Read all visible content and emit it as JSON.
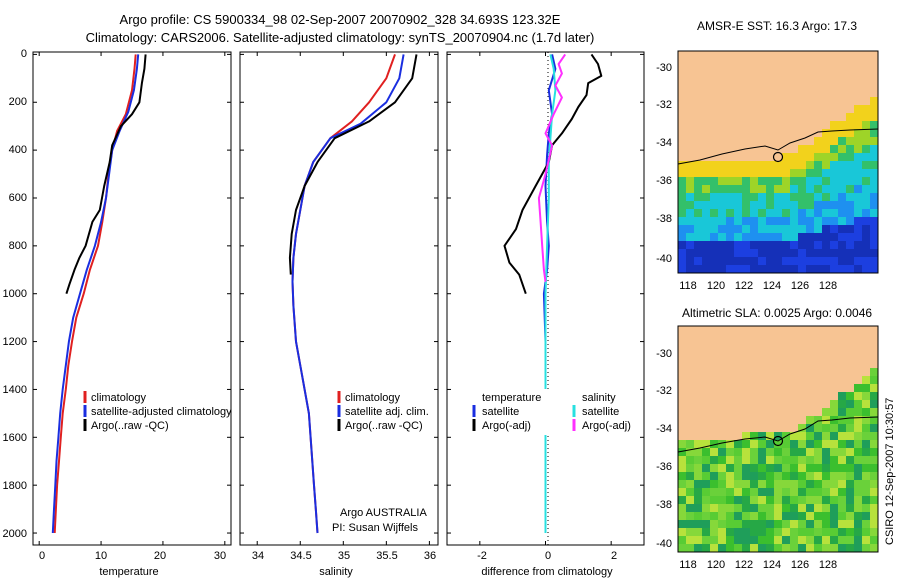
{
  "titles": {
    "line1": "Argo profile: CS 5900334_98 02-Sep-2007 20070902_328 34.693S 123.32E",
    "line2": "Climatology: CARS2006. Satellite-adjusted climatology: synTS_20070904.nc (1.7d later)",
    "sst_map": "AMSR-E SST: 16.3 Argo: 17.3",
    "sla_map": "Altimetric SLA: 0.0025 Argo: 0.0046",
    "side_stamp": "CSIRO 12-Sep-2007 10:30:57"
  },
  "colors": {
    "climatology": "#e02020",
    "satellite": "#1a2ee0",
    "argo": "#000000",
    "sat_salinity": "#28e0e0",
    "argo_salinity": "#ff30ff",
    "land": "#f7c493"
  },
  "chart_data": [
    {
      "type": "line",
      "name": "temperature-profile",
      "xlabel": "temperature",
      "ylabel": "",
      "xlim": [
        -1,
        31
      ],
      "ylim": [
        2050,
        -10
      ],
      "xticks": [
        0,
        10,
        20,
        30
      ],
      "yticks": [
        0,
        200,
        400,
        600,
        800,
        1000,
        1200,
        1400,
        1600,
        1800,
        2000
      ],
      "series": [
        {
          "name": "climatology",
          "color": "#e02020",
          "points": [
            [
              15.6,
              0
            ],
            [
              15.4,
              60
            ],
            [
              15.0,
              150
            ],
            [
              14.0,
              250
            ],
            [
              12.6,
              320
            ],
            [
              11.8,
              400
            ],
            [
              11.2,
              500
            ],
            [
              10.8,
              600
            ],
            [
              10.2,
              700
            ],
            [
              9.5,
              800
            ],
            [
              8.2,
              900
            ],
            [
              7.2,
              1000
            ],
            [
              6.0,
              1100
            ],
            [
              5.3,
              1200
            ],
            [
              4.7,
              1300
            ],
            [
              4.3,
              1400
            ],
            [
              3.8,
              1500
            ],
            [
              3.5,
              1600
            ],
            [
              3.2,
              1700
            ],
            [
              2.9,
              1800
            ],
            [
              2.7,
              1900
            ],
            [
              2.5,
              2000
            ]
          ]
        },
        {
          "name": "satellite-adjusted climatology",
          "color": "#1a2ee0",
          "points": [
            [
              16.0,
              0
            ],
            [
              15.8,
              60
            ],
            [
              15.3,
              150
            ],
            [
              14.4,
              240
            ],
            [
              13.0,
              320
            ],
            [
              11.8,
              400
            ],
            [
              11.3,
              500
            ],
            [
              10.8,
              600
            ],
            [
              10.0,
              700
            ],
            [
              9.0,
              800
            ],
            [
              7.7,
              900
            ],
            [
              6.6,
              1000
            ],
            [
              5.5,
              1100
            ],
            [
              4.8,
              1200
            ],
            [
              4.3,
              1300
            ],
            [
              3.8,
              1400
            ],
            [
              3.4,
              1500
            ],
            [
              3.1,
              1600
            ],
            [
              2.8,
              1700
            ],
            [
              2.6,
              1800
            ],
            [
              2.4,
              1900
            ],
            [
              2.2,
              2000
            ]
          ]
        },
        {
          "name": "Argo(..raw -QC)",
          "color": "#000000",
          "points": [
            [
              17.2,
              0
            ],
            [
              17.0,
              60
            ],
            [
              16.6,
              120
            ],
            [
              16.2,
              200
            ],
            [
              15.0,
              250
            ],
            [
              13.2,
              300
            ],
            [
              11.8,
              380
            ],
            [
              11.4,
              450
            ],
            [
              10.5,
              550
            ],
            [
              9.8,
              650
            ],
            [
              8.6,
              700
            ],
            [
              7.5,
              800
            ],
            [
              6.5,
              850
            ],
            [
              5.7,
              900
            ],
            [
              4.9,
              960
            ],
            [
              4.4,
              1000
            ]
          ]
        }
      ],
      "legend": [
        "climatology",
        "satellite-adjusted climatology",
        "Argo(..raw -QC)"
      ]
    },
    {
      "type": "line",
      "name": "salinity-profile",
      "xlabel": "salinity",
      "xlim": [
        33.8,
        36.1
      ],
      "ylim": [
        2050,
        -10
      ],
      "xticks": [
        34,
        34.5,
        35,
        35.5,
        36
      ],
      "series": [
        {
          "name": "climatology",
          "color": "#e02020",
          "points": [
            [
              35.6,
              0
            ],
            [
              35.5,
              100
            ],
            [
              35.3,
              200
            ],
            [
              35.1,
              280
            ],
            [
              34.85,
              350
            ],
            [
              34.65,
              450
            ],
            [
              34.55,
              550
            ],
            [
              34.5,
              650
            ],
            [
              34.45,
              750
            ],
            [
              34.42,
              850
            ],
            [
              34.41,
              950
            ],
            [
              34.42,
              1050
            ],
            [
              34.45,
              1200
            ],
            [
              34.5,
              1300
            ],
            [
              34.55,
              1400
            ],
            [
              34.6,
              1500
            ],
            [
              34.62,
              1600
            ],
            [
              34.64,
              1700
            ],
            [
              34.66,
              1800
            ],
            [
              34.68,
              1900
            ],
            [
              34.7,
              2000
            ]
          ]
        },
        {
          "name": "satellite adj. clim.",
          "color": "#1a2ee0",
          "points": [
            [
              35.7,
              0
            ],
            [
              35.65,
              100
            ],
            [
              35.5,
              200
            ],
            [
              35.2,
              290
            ],
            [
              34.85,
              350
            ],
            [
              34.65,
              450
            ],
            [
              34.55,
              550
            ],
            [
              34.5,
              650
            ],
            [
              34.45,
              750
            ],
            [
              34.42,
              850
            ],
            [
              34.41,
              950
            ],
            [
              34.42,
              1050
            ],
            [
              34.45,
              1200
            ],
            [
              34.5,
              1300
            ],
            [
              34.55,
              1400
            ],
            [
              34.6,
              1500
            ],
            [
              34.62,
              1600
            ],
            [
              34.64,
              1700
            ],
            [
              34.66,
              1800
            ],
            [
              34.68,
              1900
            ],
            [
              34.7,
              2000
            ]
          ]
        },
        {
          "name": "Argo(..raw -QC)",
          "color": "#000000",
          "points": [
            [
              35.85,
              0
            ],
            [
              35.8,
              100
            ],
            [
              35.6,
              200
            ],
            [
              35.3,
              280
            ],
            [
              34.9,
              350
            ],
            [
              34.7,
              450
            ],
            [
              34.55,
              550
            ],
            [
              34.45,
              650
            ],
            [
              34.4,
              750
            ],
            [
              34.38,
              850
            ],
            [
              34.39,
              920
            ]
          ]
        }
      ],
      "legend": [
        "climatology",
        "satellite adj. clim.",
        "Argo(..raw -QC)"
      ]
    },
    {
      "type": "line",
      "name": "difference-profile",
      "xlabel": "difference from climatology",
      "xlim": [
        -3.0,
        3.0
      ],
      "ylim": [
        2050,
        -10
      ],
      "xticks": [
        -2,
        0,
        2
      ],
      "series": [
        {
          "name": "temperature satellite",
          "color": "#1a2ee0",
          "points": [
            [
              0.2,
              0
            ],
            [
              0.3,
              60
            ],
            [
              0.1,
              150
            ],
            [
              0.2,
              250
            ],
            [
              0.1,
              330
            ],
            [
              0.05,
              420
            ],
            [
              0.0,
              550
            ],
            [
              0.05,
              700
            ],
            [
              0.1,
              800
            ],
            [
              0.05,
              900
            ],
            [
              -0.05,
              1000
            ],
            [
              0.0,
              1200
            ],
            [
              0.0,
              1400
            ],
            [
              0.0,
              1600
            ],
            [
              0.0,
              1800
            ],
            [
              0.0,
              2000
            ]
          ]
        },
        {
          "name": "temperature Argo(-adj)",
          "color": "#000000",
          "points": [
            [
              1.4,
              0
            ],
            [
              1.6,
              40
            ],
            [
              1.7,
              90
            ],
            [
              1.3,
              120
            ],
            [
              1.25,
              170
            ],
            [
              1.0,
              220
            ],
            [
              0.8,
              270
            ],
            [
              0.5,
              330
            ],
            [
              0.2,
              380
            ],
            [
              0.1,
              450
            ],
            [
              -0.3,
              550
            ],
            [
              -0.7,
              650
            ],
            [
              -0.9,
              730
            ],
            [
              -1.25,
              800
            ],
            [
              -1.1,
              870
            ],
            [
              -0.8,
              920
            ],
            [
              -0.6,
              1000
            ]
          ]
        },
        {
          "name": "salinity satellite",
          "color": "#28e0e0",
          "points": [
            [
              0.15,
              0
            ],
            [
              0.25,
              60
            ],
            [
              0.3,
              150
            ],
            [
              0.2,
              250
            ],
            [
              0.15,
              350
            ],
            [
              0.1,
              450
            ],
            [
              0.1,
              600
            ],
            [
              0.05,
              800
            ],
            [
              0.0,
              1000
            ],
            [
              0.0,
              1400
            ],
            [
              0.0,
              1800
            ],
            [
              0.0,
              2000
            ]
          ]
        },
        {
          "name": "salinity Argo(-adj)",
          "color": "#ff30ff",
          "points": [
            [
              0.6,
              0
            ],
            [
              0.4,
              40
            ],
            [
              0.5,
              80
            ],
            [
              0.3,
              130
            ],
            [
              0.5,
              180
            ],
            [
              0.25,
              250
            ],
            [
              0.0,
              330
            ],
            [
              0.2,
              380
            ],
            [
              0.0,
              500
            ],
            [
              -0.2,
              600
            ],
            [
              -0.15,
              700
            ],
            [
              -0.1,
              800
            ],
            [
              -0.05,
              900
            ],
            [
              0.0,
              950
            ]
          ]
        }
      ],
      "legend": [
        "temperature",
        "satellite",
        "Argo(-adj)",
        "salinity",
        "satellite",
        "Argo(-adj)"
      ]
    }
  ],
  "legends": {
    "temp": [
      "climatology",
      "satellite-adjusted climatology",
      "Argo(..raw -QC)"
    ],
    "sal": [
      "climatology",
      "satellite adj. clim.",
      "Argo(..raw -QC)"
    ],
    "diff_temp_head": "temperature",
    "diff_sal_head": "salinity",
    "diff_sat": "satellite",
    "diff_argo": "Argo(-adj)"
  },
  "axes": {
    "temp_x": [
      "0",
      "10",
      "20",
      "30"
    ],
    "sal_x": [
      "34",
      "34.5",
      "35",
      "35.5",
      "36"
    ],
    "diff_x": [
      "-2",
      "0",
      "2"
    ],
    "depth": [
      "0",
      "200",
      "400",
      "600",
      "800",
      "1000",
      "1200",
      "1400",
      "1600",
      "1800",
      "2000"
    ],
    "map_lat": [
      "-30",
      "-32",
      "-34",
      "-36",
      "-38",
      "-40"
    ],
    "map_lon": [
      "118",
      "120",
      "122",
      "124",
      "126",
      "128"
    ],
    "temp_label": "temperature",
    "sal_label": "salinity",
    "diff_label": "difference from climatology"
  },
  "credits": {
    "line1": "Argo AUSTRALIA",
    "line2": "PI: Susan Wijffels"
  }
}
